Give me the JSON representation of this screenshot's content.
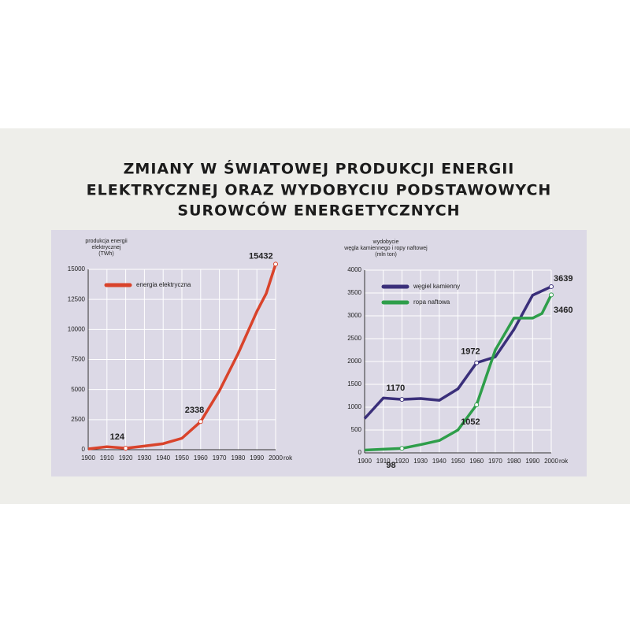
{
  "title": [
    "ZMIANY W ŚWIATOWEJ PRODUKCJI ENERGII",
    "ELEKTRYCZNEJ ORAZ WYDOBYCIU PODSTAWOWYCH",
    "SUROWCÓW ENERGETYCZNYCH"
  ],
  "chart_data": [
    {
      "type": "line",
      "y_label": [
        "produkcja energii",
        "elektrycznej",
        "(TWh)"
      ],
      "x_unit": "rok",
      "xlim": [
        1900,
        2000
      ],
      "xticks": [
        1900,
        1910,
        1920,
        1930,
        1940,
        1950,
        1960,
        1970,
        1980,
        1990,
        2000
      ],
      "ylim": [
        0,
        15000
      ],
      "yticks": [
        0,
        2500,
        5000,
        7500,
        10000,
        12500,
        15000
      ],
      "series": [
        {
          "name": "energia elektryczna",
          "color": "#d9432b",
          "x": [
            1900,
            1910,
            1920,
            1930,
            1940,
            1950,
            1960,
            1970,
            1980,
            1990,
            1995,
            2000
          ],
          "values": [
            66,
            250,
            124,
            300,
            500,
            950,
            2338,
            4900,
            8000,
            11500,
            13000,
            15432
          ],
          "value_labels": [
            null,
            null,
            "124",
            null,
            null,
            null,
            "2338",
            null,
            null,
            null,
            null,
            "15432"
          ]
        }
      ]
    },
    {
      "type": "line",
      "y_label": [
        "wydobycie",
        "węgla kamiennego i ropy naftowej",
        "(mln ton)"
      ],
      "x_unit": "rok",
      "xlim": [
        1900,
        2000
      ],
      "xticks": [
        1900,
        1910,
        1920,
        1930,
        1940,
        1950,
        1960,
        1970,
        1980,
        1990,
        2000
      ],
      "ylim": [
        0,
        4000
      ],
      "yticks": [
        0,
        500,
        1000,
        1500,
        2000,
        2500,
        3000,
        3500,
        4000
      ],
      "series": [
        {
          "name": "węgiel kamienny",
          "color": "#3a2f7a",
          "x": [
            1900,
            1910,
            1920,
            1930,
            1940,
            1950,
            1960,
            1970,
            1980,
            1990,
            2000
          ],
          "values": [
            750,
            1200,
            1170,
            1190,
            1150,
            1400,
            1972,
            2100,
            2700,
            3450,
            3639
          ],
          "value_labels": [
            null,
            null,
            "1170",
            null,
            null,
            null,
            "1972",
            null,
            null,
            null,
            "3639"
          ]
        },
        {
          "name": "ropa naftowa",
          "color": "#2e9e4a",
          "x": [
            1900,
            1910,
            1920,
            1930,
            1940,
            1950,
            1960,
            1970,
            1980,
            1990,
            1995,
            2000
          ],
          "values": [
            60,
            80,
            98,
            180,
            270,
            500,
            1052,
            2250,
            2950,
            2950,
            3050,
            3460
          ],
          "value_labels": [
            null,
            null,
            "98",
            null,
            null,
            null,
            "1052",
            null,
            null,
            null,
            null,
            "3460"
          ]
        }
      ]
    }
  ]
}
